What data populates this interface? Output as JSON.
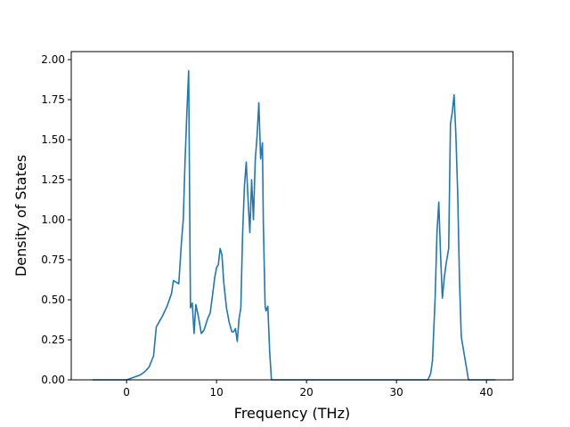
{
  "chart_data": {
    "type": "line",
    "title": "",
    "xlabel": "Frequency (THz)",
    "ylabel": "Density of States",
    "xlim": [
      -6.15,
      42.95
    ],
    "ylim": [
      0,
      2.05
    ],
    "xticks": [
      0,
      10,
      20,
      30,
      40
    ],
    "xtick_labels": [
      "0",
      "10",
      "20",
      "30",
      "40"
    ],
    "yticks": [
      0,
      0.25,
      0.5,
      0.75,
      1.0,
      1.25,
      1.5,
      1.75,
      2.0
    ],
    "ytick_labels": [
      "0.00",
      "0.25",
      "0.50",
      "0.75",
      "1.00",
      "1.25",
      "1.50",
      "1.75",
      "2.00"
    ],
    "grid": false,
    "legend": "none",
    "line_color": "#1f77b4",
    "series": [
      {
        "x": [
          -3.8,
          0.0,
          0.5,
          1.0,
          1.5,
          2.0,
          2.5,
          3.0,
          3.3,
          3.6,
          4.0,
          4.5,
          5.0,
          5.2,
          5.5,
          5.8,
          6.1,
          6.3,
          6.5,
          6.7,
          6.9,
          7.1,
          7.3,
          7.5,
          7.7,
          8.0,
          8.3,
          8.6,
          9.0,
          9.3,
          9.6,
          9.8,
          10.0,
          10.2,
          10.4,
          10.6,
          10.8,
          11.1,
          11.4,
          11.7,
          11.9,
          12.1,
          12.3,
          12.5,
          12.7,
          12.9,
          13.1,
          13.3,
          13.5,
          13.7,
          13.9,
          14.1,
          14.3,
          14.5,
          14.7,
          14.9,
          15.1,
          15.2,
          15.4,
          15.5,
          15.7,
          15.9,
          16.1,
          16.3,
          20.0,
          25.0,
          30.0,
          33.5,
          33.8,
          34.0,
          34.3,
          34.5,
          34.7,
          34.9,
          35.1,
          35.3,
          35.5,
          35.8,
          36.0,
          36.2,
          36.4,
          36.6,
          36.8,
          37.0,
          37.2,
          38.0,
          40.0,
          41.0
        ],
        "y": [
          0.0,
          0.0,
          0.01,
          0.02,
          0.03,
          0.05,
          0.08,
          0.15,
          0.33,
          0.36,
          0.4,
          0.46,
          0.54,
          0.62,
          0.61,
          0.6,
          0.86,
          1.0,
          1.37,
          1.67,
          1.93,
          0.45,
          0.48,
          0.29,
          0.47,
          0.39,
          0.29,
          0.31,
          0.38,
          0.42,
          0.55,
          0.64,
          0.7,
          0.72,
          0.82,
          0.78,
          0.61,
          0.45,
          0.36,
          0.3,
          0.3,
          0.32,
          0.24,
          0.38,
          0.45,
          0.92,
          1.21,
          1.36,
          1.13,
          0.92,
          1.25,
          1.0,
          1.37,
          1.52,
          1.73,
          1.38,
          1.48,
          0.98,
          0.46,
          0.43,
          0.46,
          0.18,
          0.0,
          0.0,
          0.0,
          0.0,
          0.0,
          0.0,
          0.04,
          0.12,
          0.52,
          0.92,
          1.11,
          0.78,
          0.51,
          0.63,
          0.72,
          0.82,
          1.6,
          1.67,
          1.78,
          1.53,
          1.17,
          0.63,
          0.27,
          0.0,
          0.0,
          0.0
        ]
      }
    ]
  }
}
